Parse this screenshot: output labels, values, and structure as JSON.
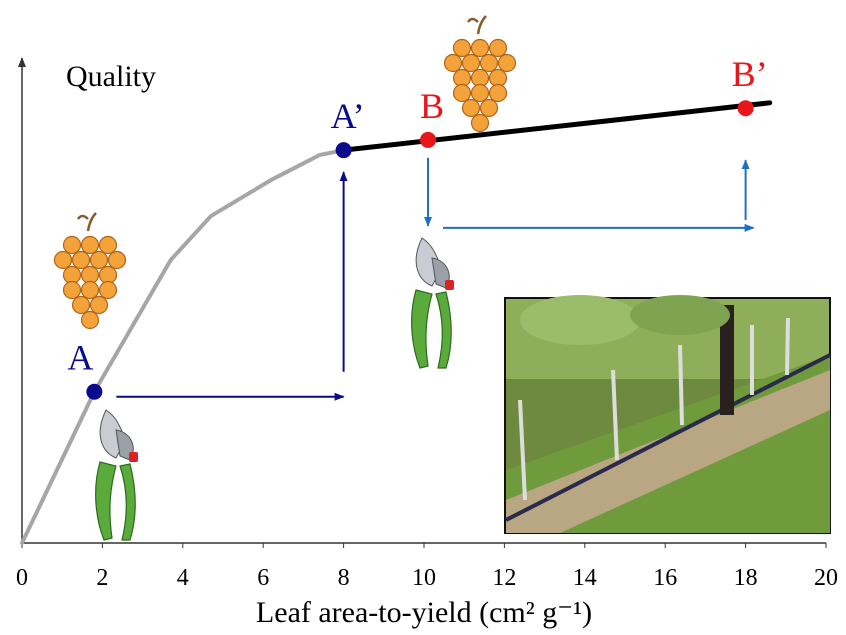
{
  "chart_data": {
    "type": "line",
    "y_label": "Quality",
    "x_label": "Leaf area-to-yield (cm² g⁻¹)",
    "xlim": [
      0,
      20
    ],
    "xticks": [
      0,
      2,
      4,
      6,
      8,
      10,
      12,
      14,
      16,
      18,
      20
    ],
    "ylim": [
      0,
      100
    ],
    "series": [
      {
        "color": "#a6a6a6",
        "x": [
          0,
          1.8,
          3.7,
          4.7,
          6.2,
          7.4,
          8
        ],
        "values": [
          0,
          31,
          58,
          67,
          74.4,
          79.5,
          80.5
        ]
      },
      {
        "color": "#000000",
        "x": [
          8,
          18.6
        ],
        "values": [
          80.5,
          90.2
        ]
      }
    ],
    "points": [
      {
        "label": "A",
        "x": 1.8,
        "value": 31,
        "color": "#0a0a8c"
      },
      {
        "label": "A’",
        "x": 8,
        "value": 80.5,
        "color": "#0a0a8c"
      },
      {
        "label": "B",
        "x": 10.1,
        "value": 82.6,
        "color": "#e8161b"
      },
      {
        "label": "B’",
        "x": 18,
        "value": 89.1,
        "color": "#e8161b"
      }
    ]
  }
}
